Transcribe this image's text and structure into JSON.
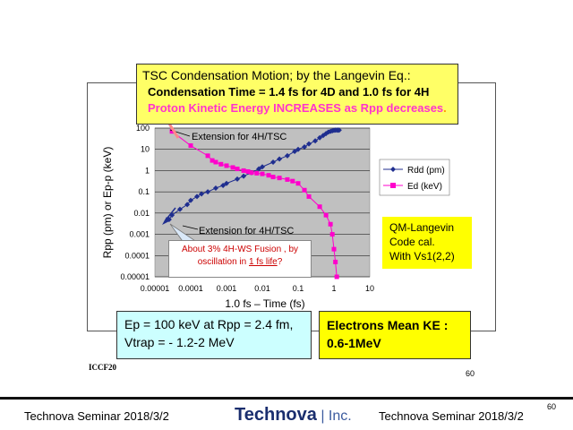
{
  "title_box": {
    "line1": "TSC Condensation Motion;  by the Langevin Eq.:",
    "line2": "Condensation Time = 1.4 fs for 4D and 1.0 fs for 4H",
    "line3": "Proton Kinetic Energy INCREASES as Rpp decreases",
    "line3_end": "."
  },
  "chart_data": {
    "type": "scatter",
    "xlabel": "1.0 fs – Time (fs)",
    "ylabel": "Rpp (pm) or Ep-p (keV)",
    "xscale": "log",
    "yscale": "log",
    "xlim": [
      1e-05,
      10
    ],
    "ylim": [
      1e-05,
      100
    ],
    "x_ticks": [
      "0.00001",
      "0.0001",
      "0.001",
      "0.01",
      "0.1",
      "1",
      "10"
    ],
    "y_ticks": [
      "100",
      "10",
      "1",
      "0.1",
      "0.01",
      "0.001",
      "0.0001",
      "0.00001"
    ],
    "grid": true,
    "legend_placement": "right",
    "series": [
      {
        "name": "Rdd (pm)",
        "color": "#1f2e8f",
        "marker": "diamond",
        "points": [
          [
            2.5e-05,
            0.005
          ],
          [
            3e-05,
            0.008
          ],
          [
            5e-05,
            0.015
          ],
          [
            8e-05,
            0.025
          ],
          [
            0.0001,
            0.04
          ],
          [
            0.00015,
            0.06
          ],
          [
            0.0002,
            0.08
          ],
          [
            0.0003,
            0.1
          ],
          [
            0.0005,
            0.15
          ],
          [
            0.0008,
            0.2
          ],
          [
            0.001,
            0.25
          ],
          [
            0.002,
            0.4
          ],
          [
            0.003,
            0.55
          ],
          [
            0.005,
            0.8
          ],
          [
            0.008,
            1.2
          ],
          [
            0.01,
            1.5
          ],
          [
            0.02,
            2.5
          ],
          [
            0.03,
            3.5
          ],
          [
            0.05,
            5
          ],
          [
            0.08,
            8
          ],
          [
            0.1,
            10
          ],
          [
            0.15,
            13
          ],
          [
            0.2,
            18
          ],
          [
            0.3,
            25
          ],
          [
            0.4,
            35
          ],
          [
            0.5,
            45
          ],
          [
            0.6,
            55
          ],
          [
            0.7,
            65
          ],
          [
            0.8,
            70
          ],
          [
            0.9,
            75
          ],
          [
            1.0,
            78
          ],
          [
            1.1,
            80
          ],
          [
            1.2,
            80
          ],
          [
            1.3,
            80
          ],
          [
            1.4,
            80
          ]
        ]
      },
      {
        "name": "Ed (keV)",
        "color": "#ff00cc",
        "marker": "square",
        "points": [
          [
            3e-05,
            70
          ],
          [
            0.0001,
            15
          ],
          [
            0.0003,
            5
          ],
          [
            0.0004,
            3
          ],
          [
            0.0005,
            2.5
          ],
          [
            0.0007,
            2
          ],
          [
            0.001,
            1.7
          ],
          [
            0.0015,
            1.4
          ],
          [
            0.002,
            1.2
          ],
          [
            0.003,
            1.0
          ],
          [
            0.004,
            0.9
          ],
          [
            0.005,
            0.8
          ],
          [
            0.007,
            0.75
          ],
          [
            0.01,
            0.7
          ],
          [
            0.015,
            0.6
          ],
          [
            0.02,
            0.5
          ],
          [
            0.03,
            0.45
          ],
          [
            0.05,
            0.38
          ],
          [
            0.07,
            0.32
          ],
          [
            0.1,
            0.25
          ],
          [
            0.15,
            0.12
          ],
          [
            0.2,
            0.06
          ],
          [
            0.4,
            0.02
          ],
          [
            0.6,
            0.008
          ],
          [
            0.8,
            0.003
          ],
          [
            0.9,
            0.001
          ],
          [
            1.0,
            0.0002
          ],
          [
            1.1,
            5e-05
          ],
          [
            1.2,
            1e-05
          ]
        ]
      }
    ],
    "annotations": [
      "Extension for 4H/TSC",
      "Extension for 4H/TSC"
    ]
  },
  "fusion_note": {
    "prefix": "About 3% 4H-WS Fusion , by oscillation in ",
    "link": "1 fs life",
    "suffix": "?"
  },
  "qm_box": [
    "QM-Langevin",
    "Code cal.",
    "With Vs1(2,2)"
  ],
  "ep_box": [
    "Ep = 100 keV at Rpp = 2.4 fm,",
    "Vtrap = - 1.2-2 MeV"
  ],
  "electron_box": [
    "Electrons Mean KE :",
    "0.6-1MeV"
  ],
  "iccf": "ICCF20",
  "page_num_inner": "60",
  "page_num_outer": "60",
  "footer": {
    "left": "Technova Seminar 2018/3/2",
    "brand": "Technova",
    "brand_inc": "Inc.",
    "right": "Technova Seminar 2018/3/2"
  }
}
